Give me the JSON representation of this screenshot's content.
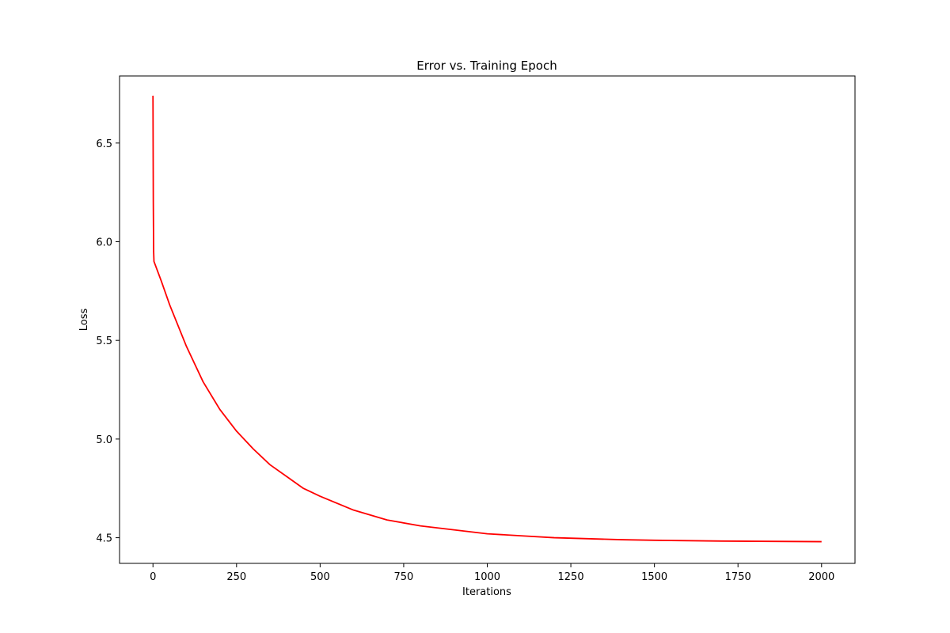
{
  "chart_data": {
    "type": "line",
    "title": "Error vs. Training Epoch",
    "xlabel": "Iterations",
    "ylabel": "Loss",
    "xlim": [
      -100,
      2100
    ],
    "ylim": [
      4.37,
      6.84
    ],
    "xticks": [
      0,
      250,
      500,
      750,
      1000,
      1250,
      1500,
      1750,
      2000
    ],
    "yticks": [
      4.5,
      5.0,
      5.5,
      6.0,
      6.5
    ],
    "xtick_labels": [
      "0",
      "250",
      "500",
      "750",
      "1000",
      "1250",
      "1500",
      "1750",
      "2000"
    ],
    "ytick_labels": [
      "4.5",
      "5.0",
      "5.5",
      "6.0",
      "6.5"
    ],
    "grid": false,
    "series": [
      {
        "color": "#ff0000",
        "x": [
          0,
          1,
          2,
          3,
          25,
          50,
          100,
          150,
          200,
          250,
          300,
          350,
          400,
          450,
          500,
          600,
          700,
          800,
          900,
          1000,
          1100,
          1200,
          1300,
          1400,
          1500,
          1600,
          1700,
          1800,
          1900,
          2000
        ],
        "y": [
          6.74,
          6.2,
          5.95,
          5.9,
          5.8,
          5.68,
          5.47,
          5.29,
          5.15,
          5.04,
          4.95,
          4.87,
          4.81,
          4.75,
          4.71,
          4.64,
          4.59,
          4.56,
          4.54,
          4.52,
          4.51,
          4.5,
          4.495,
          4.49,
          4.487,
          4.485,
          4.483,
          4.482,
          4.481,
          4.48
        ]
      }
    ]
  }
}
